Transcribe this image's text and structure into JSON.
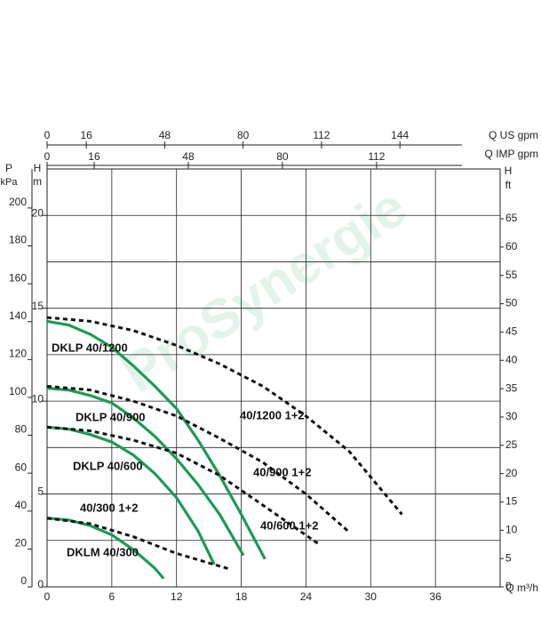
{
  "chart_data": {
    "type": "line",
    "watermark": "ProSynergie",
    "x_label": "Q m³/h",
    "xlim": [
      0,
      42
    ],
    "xticks": [
      0,
      6,
      12,
      18,
      24,
      30,
      36
    ],
    "h_symbol": "H",
    "m_unit": "m",
    "ylim": [
      0,
      22.5
    ],
    "yticks": [
      0,
      5,
      10,
      15,
      20
    ],
    "y_grid": [
      2.5,
      5,
      7.5,
      10,
      12.5,
      15,
      17.5,
      20,
      22.5
    ],
    "p_symbol": "P",
    "kpa_unit": "kPa",
    "kpa_lim": [
      0,
      220.6
    ],
    "kpa_ticks": [
      0,
      20,
      40,
      60,
      80,
      100,
      120,
      140,
      160,
      180,
      200
    ],
    "ft_symbol": "H",
    "ft_unit": "ft",
    "ft_lim": [
      0,
      73.8
    ],
    "ft_ticks": [
      0,
      5,
      10,
      15,
      20,
      25,
      30,
      35,
      40,
      45,
      50,
      55,
      60,
      65
    ],
    "us_gpm_label": "Q US gpm",
    "us_gpm_lim": [
      0,
      184.9
    ],
    "us_gpm_ticks": [
      0,
      16,
      48,
      80,
      112,
      144
    ],
    "imp_gpm_label": "Q IMP gpm",
    "imp_gpm_lim": [
      0,
      154
    ],
    "imp_gpm_ticks": [
      0,
      16,
      48,
      80,
      112
    ],
    "series": [
      {
        "name": "DKLP 40/1200",
        "color": "#1d9a55",
        "dashed": false,
        "x": [
          0,
          2,
          4,
          6,
          8,
          10,
          12,
          14,
          16,
          18,
          20.2
        ],
        "values": [
          14.3,
          14.1,
          13.6,
          12.9,
          11.9,
          10.8,
          9.6,
          7.9,
          6.0,
          3.9,
          1.5
        ]
      },
      {
        "name": "DKLP 40/900",
        "color": "#1d9a55",
        "dashed": false,
        "x": [
          0,
          2,
          4,
          6,
          8,
          10,
          12,
          14,
          16,
          18.2
        ],
        "values": [
          10.7,
          10.6,
          10.3,
          9.9,
          9.1,
          8.1,
          6.9,
          5.5,
          3.9,
          1.7
        ]
      },
      {
        "name": "DKLP 40/600",
        "color": "#1d9a55",
        "dashed": false,
        "x": [
          0,
          2,
          4,
          6,
          8,
          10,
          12,
          14,
          15.5
        ],
        "values": [
          8.6,
          8.5,
          8.2,
          7.8,
          7.1,
          6.1,
          4.8,
          3.0,
          1.2
        ]
      },
      {
        "name": "DKLM 40/300",
        "color": "#1d9a55",
        "dashed": false,
        "x": [
          0,
          2,
          4,
          6,
          8,
          10,
          10.8
        ],
        "values": [
          3.7,
          3.6,
          3.3,
          2.8,
          2.0,
          1.0,
          0.45
        ]
      },
      {
        "name": "40/1200 1+2",
        "color": "#111111",
        "dashed": true,
        "x": [
          0,
          4,
          8,
          12,
          16,
          20,
          24,
          28,
          32.9
        ],
        "values": [
          14.5,
          14.3,
          13.8,
          13.0,
          12.0,
          10.8,
          9.2,
          7.3,
          3.9
        ]
      },
      {
        "name": "40/900 1+2",
        "color": "#111111",
        "dashed": true,
        "x": [
          0,
          4,
          8,
          12,
          16,
          20,
          24,
          28.1
        ],
        "values": [
          10.8,
          10.6,
          10.0,
          9.2,
          8.0,
          6.7,
          5.0,
          2.9
        ]
      },
      {
        "name": "40/600 1+2",
        "color": "#111111",
        "dashed": true,
        "x": [
          0,
          4,
          8,
          12,
          16,
          20,
          25.2
        ],
        "values": [
          8.6,
          8.4,
          7.9,
          7.2,
          6.0,
          4.4,
          2.3
        ]
      },
      {
        "name": "40/300 1+2",
        "color": "#111111",
        "dashed": true,
        "x": [
          0,
          4,
          8,
          12,
          17
        ],
        "values": [
          3.7,
          3.4,
          2.7,
          1.8,
          0.95
        ]
      }
    ]
  }
}
